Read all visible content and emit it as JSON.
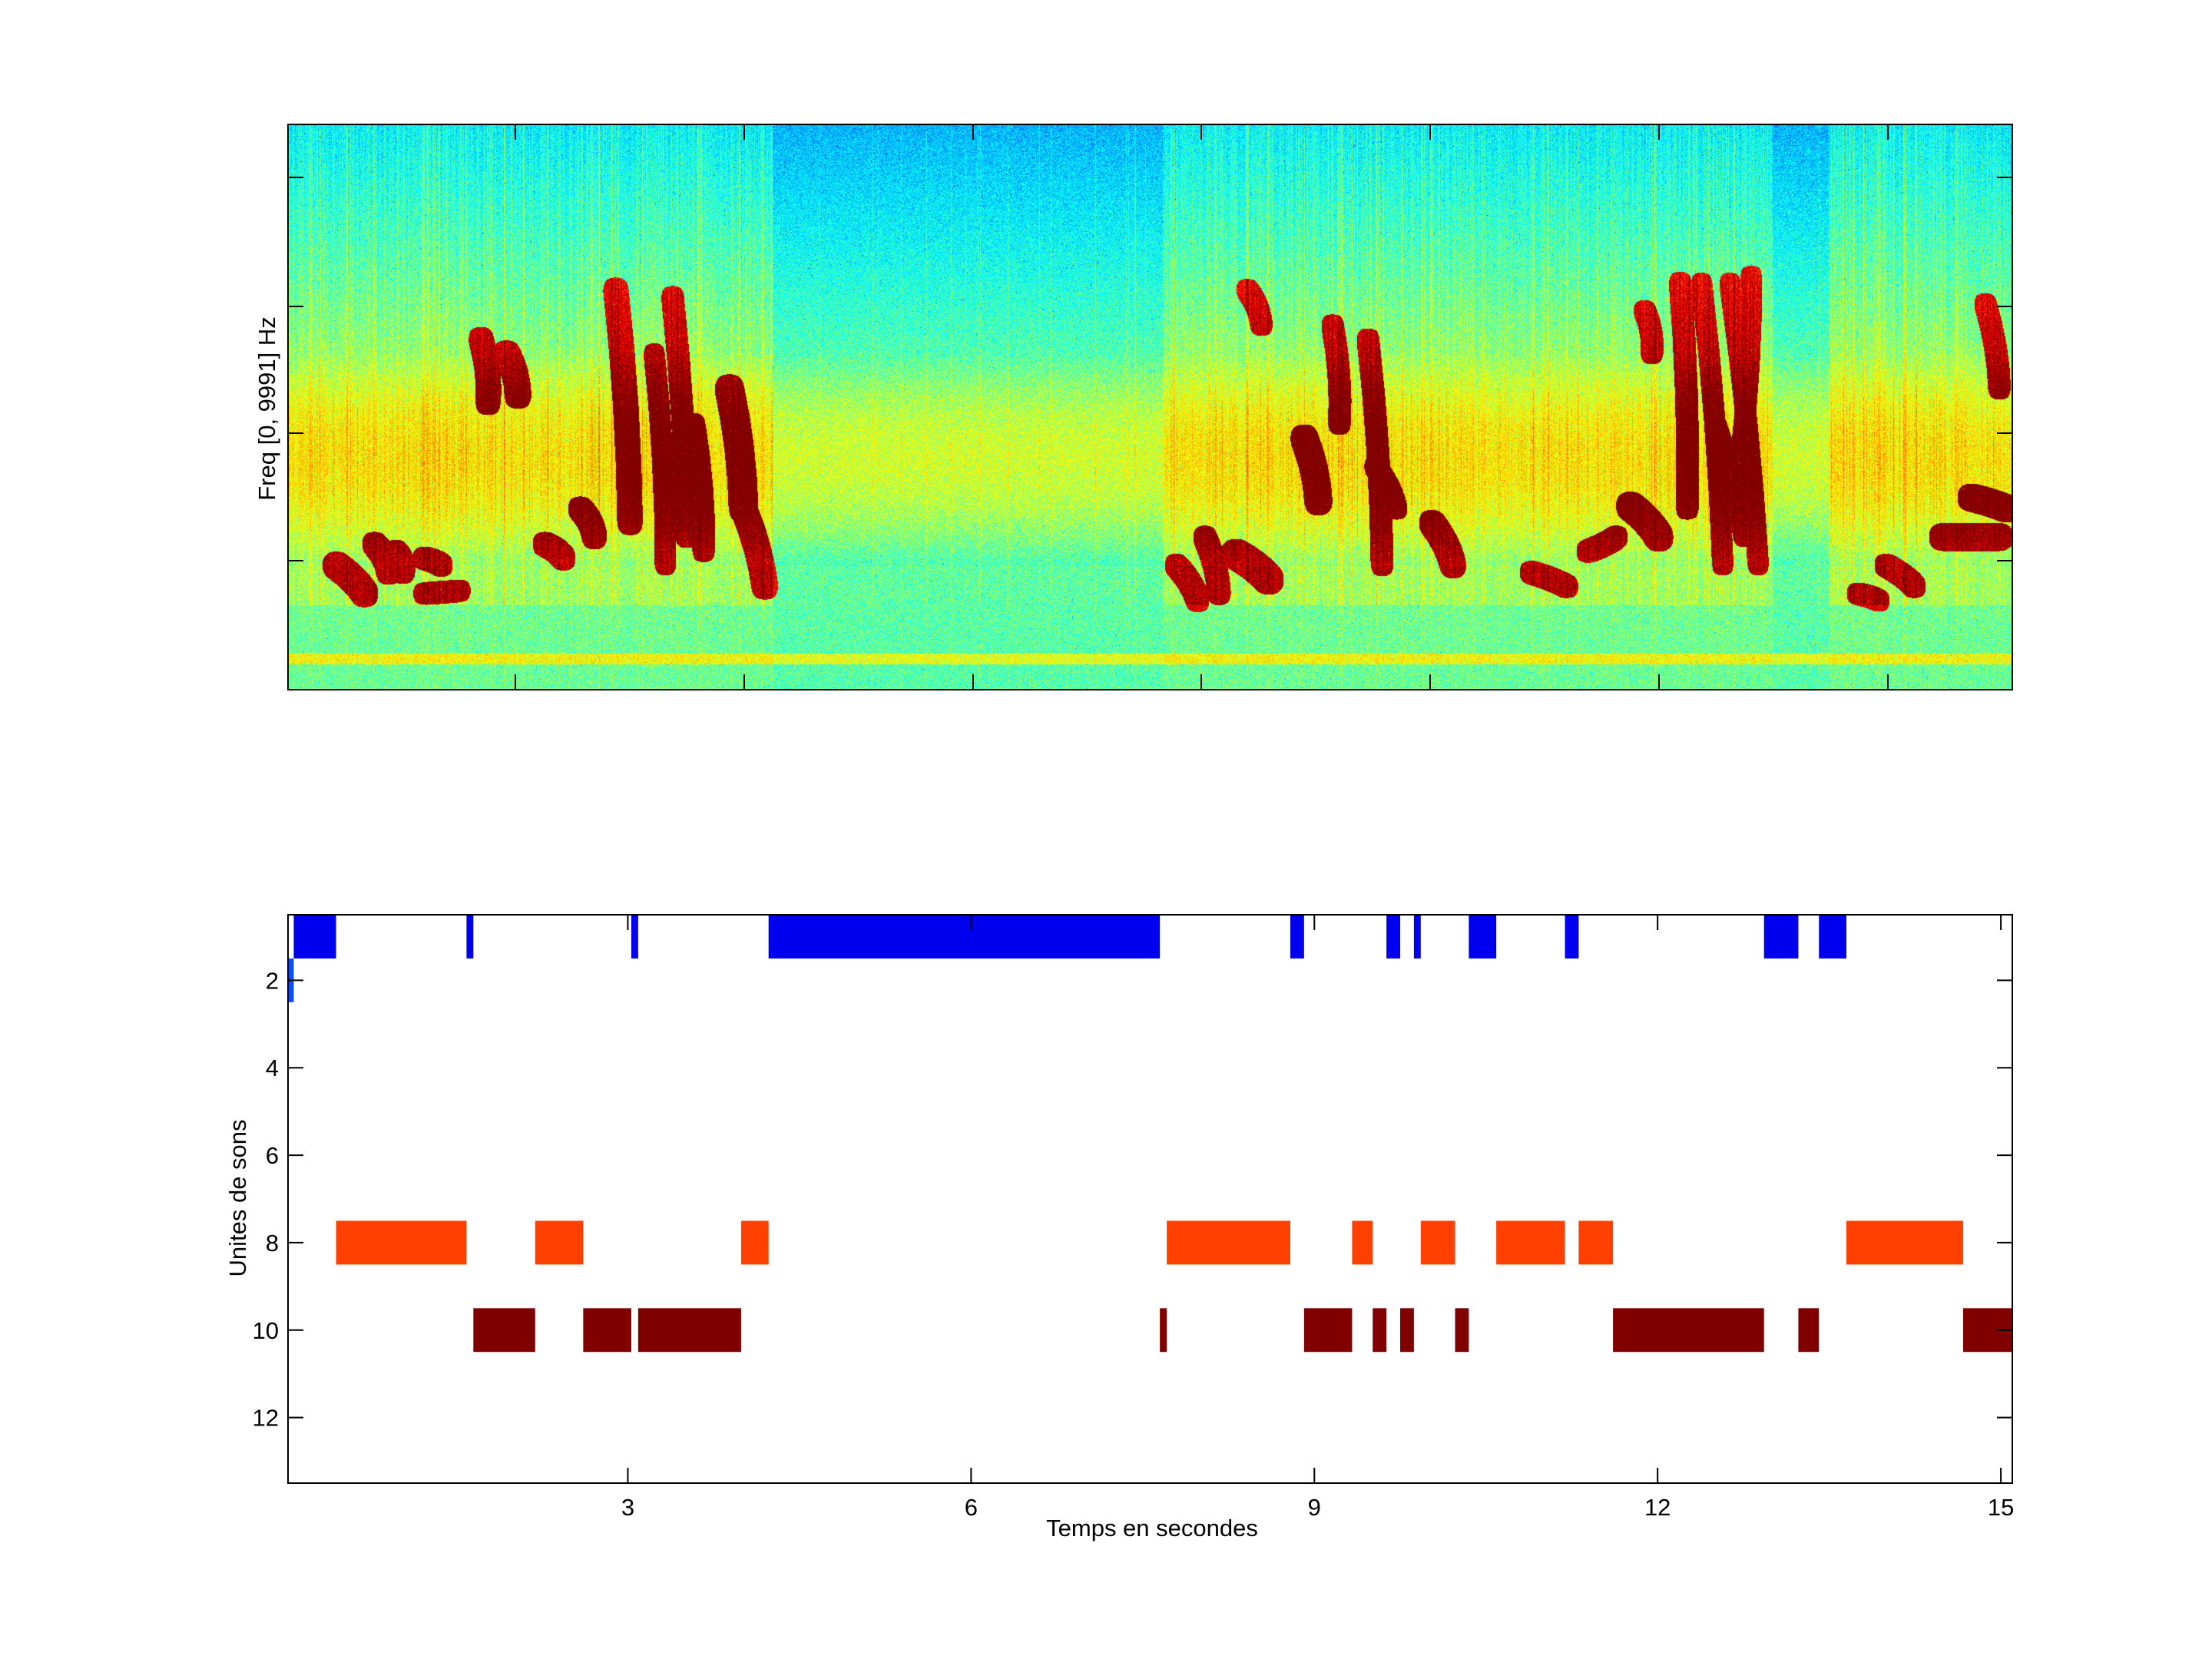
{
  "chart_data": [
    {
      "type": "heatmap",
      "title": "",
      "xlabel": "",
      "ylabel": "Freq [0, 9991] Hz",
      "colormap": "jet",
      "tick_labels_visible": false
    },
    {
      "type": "bar",
      "subtype": "event-raster",
      "title": "",
      "xlabel": "Temps en secondes",
      "ylabel": "Unites de sons",
      "xlim": [
        0.03,
        15.1
      ],
      "ylim": [
        0.5,
        13.5
      ],
      "y_reversed": true,
      "xticks": [
        "3",
        "6",
        "9",
        "12",
        "15"
      ],
      "xtick_values": [
        3,
        6,
        9,
        12,
        15
      ],
      "yticks": [
        "2",
        "4",
        "6",
        "8",
        "10",
        "12"
      ],
      "ytick_values": [
        2,
        4,
        6,
        8,
        10,
        12
      ],
      "grid": false,
      "series": [
        {
          "name": "unit 1",
          "unit": 1,
          "color": "#0000ee",
          "segments": [
            [
              0.08,
              0.45
            ],
            [
              1.59,
              1.65
            ],
            [
              3.03,
              3.09
            ],
            [
              4.23,
              7.65
            ],
            [
              8.79,
              8.91
            ],
            [
              9.63,
              9.75
            ],
            [
              9.87,
              9.93
            ],
            [
              10.35,
              10.59
            ],
            [
              11.19,
              11.31
            ],
            [
              12.93,
              13.23
            ],
            [
              13.41,
              13.65
            ]
          ]
        },
        {
          "name": "unit 2",
          "unit": 2,
          "color": "#0a4cff",
          "segments": [
            [
              0.03,
              0.08
            ]
          ]
        },
        {
          "name": "unit 8",
          "unit": 8,
          "color": "#ff4000",
          "segments": [
            [
              0.45,
              1.59
            ],
            [
              2.19,
              2.61
            ],
            [
              3.99,
              4.23
            ],
            [
              7.71,
              8.79
            ],
            [
              9.33,
              9.51
            ],
            [
              9.93,
              10.23
            ],
            [
              10.59,
              11.19
            ],
            [
              11.31,
              11.61
            ],
            [
              13.65,
              14.67
            ]
          ]
        },
        {
          "name": "unit 10",
          "unit": 10,
          "color": "#800000",
          "segments": [
            [
              1.65,
              2.19
            ],
            [
              2.61,
              3.03
            ],
            [
              3.09,
              3.99
            ],
            [
              7.65,
              7.71
            ],
            [
              8.91,
              9.33
            ],
            [
              9.51,
              9.63
            ],
            [
              9.75,
              9.87
            ],
            [
              10.23,
              10.35
            ],
            [
              11.61,
              12.93
            ],
            [
              13.23,
              13.41
            ],
            [
              14.67,
              15.1
            ]
          ]
        }
      ]
    }
  ]
}
